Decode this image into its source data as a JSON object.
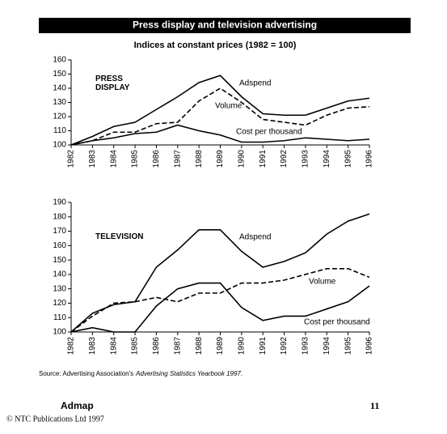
{
  "header": {
    "title": "Press display and television advertising",
    "subtitle": "Indices at constant prices (1982 = 100)"
  },
  "chart_data": [
    {
      "type": "line",
      "title_lines": [
        "PRESS",
        "DISPLAY"
      ],
      "categories": [
        "1982",
        "1983",
        "1984",
        "1985",
        "1986",
        "1987",
        "1988",
        "1989",
        "1990",
        "1991",
        "1992",
        "1993",
        "1994",
        "1995",
        "1996"
      ],
      "ylim": [
        100,
        160
      ],
      "yticks": [
        100,
        110,
        120,
        130,
        140,
        150,
        160
      ],
      "series": [
        {
          "name": "Adspend",
          "color": "#000000",
          "style": "solid",
          "values": [
            100,
            106,
            113,
            116,
            125,
            134,
            144,
            149,
            134,
            122,
            121,
            121,
            126,
            131,
            133
          ]
        },
        {
          "name": "Volume",
          "color": "#000000",
          "style": "dashed",
          "values": [
            100,
            103,
            109,
            109,
            115,
            116,
            131,
            140,
            130,
            118,
            116,
            114,
            121,
            126,
            127
          ]
        },
        {
          "name": "Cost per thousand",
          "color": "#000000",
          "style": "solid",
          "values": [
            100,
            103,
            105,
            108,
            109,
            114,
            110,
            107,
            102,
            102,
            103,
            105,
            104,
            103,
            104
          ]
        }
      ]
    },
    {
      "type": "line",
      "title_lines": [
        "TELEVISION"
      ],
      "categories": [
        "1982",
        "1983",
        "1984",
        "1985",
        "1986",
        "1987",
        "1988",
        "1989",
        "1990",
        "1991",
        "1992",
        "1993",
        "1994",
        "1995",
        "1996"
      ],
      "ylim": [
        100,
        190
      ],
      "yticks": [
        100,
        110,
        120,
        130,
        140,
        150,
        160,
        170,
        180,
        190
      ],
      "series": [
        {
          "name": "Adspend",
          "color": "#000000",
          "style": "solid",
          "values": [
            100,
            113,
            119,
            121,
            145,
            157,
            171,
            171,
            156,
            145,
            149,
            155,
            168,
            177,
            182
          ]
        },
        {
          "name": "Volume",
          "color": "#000000",
          "style": "dashed",
          "values": [
            100,
            111,
            120,
            121,
            124,
            121,
            127,
            127,
            134,
            134,
            136,
            140,
            144,
            144,
            138
          ]
        },
        {
          "name": "Cost per thousand",
          "color": "#000000",
          "style": "solid",
          "values": [
            100,
            103,
            100,
            100,
            118,
            130,
            134,
            134,
            117,
            108,
            111,
            111,
            116,
            121,
            132
          ]
        }
      ]
    }
  ],
  "source": {
    "prefix": "Source: Advertising Association's",
    "italic": "Advertising Statistics Yearbook 1997",
    "suffix": "."
  },
  "footer": {
    "journal": "Admap",
    "page": "11",
    "copyright": "© NTC Publications Ltd 1997"
  }
}
